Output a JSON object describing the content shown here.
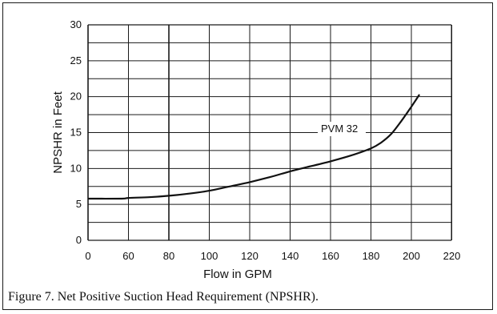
{
  "chart_data": {
    "type": "line",
    "xlabel": "Flow in GPM",
    "ylabel": "NPSHR in Feet",
    "x_ticks": [
      "0",
      "60",
      "80",
      "100",
      "120",
      "140",
      "160",
      "180",
      "200",
      "220"
    ],
    "y_ticks": [
      "0",
      "5",
      "10",
      "15",
      "20",
      "25",
      "30"
    ],
    "ylim": [
      0,
      30
    ],
    "grid": true,
    "series": [
      {
        "name": "PVM 32",
        "x": [
          40,
          50,
          60,
          70,
          80,
          90,
          100,
          110,
          120,
          130,
          140,
          150,
          160,
          170,
          180,
          185,
          190,
          195,
          200,
          204
        ],
        "y": [
          5.8,
          5.8,
          5.9,
          6.0,
          6.2,
          6.5,
          6.9,
          7.5,
          8.1,
          8.8,
          9.6,
          10.3,
          11.0,
          11.8,
          12.8,
          13.6,
          14.8,
          16.6,
          18.6,
          20.3
        ]
      }
    ]
  },
  "caption": "Figure 7. Net Positive Suction Head Requirement (NPSHR)."
}
